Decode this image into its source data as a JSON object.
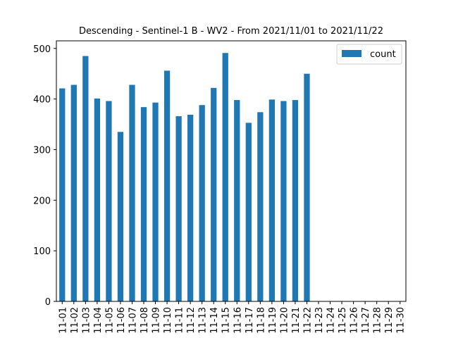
{
  "chart_data": {
    "type": "bar",
    "title": "Descending - Sentinel-1 B - WV2 - From 2021/11/01 to 2021/11/22",
    "xlabel": "",
    "ylabel": "",
    "categories": [
      "11-01",
      "11-02",
      "11-03",
      "11-04",
      "11-05",
      "11-06",
      "11-07",
      "11-08",
      "11-09",
      "11-10",
      "11-11",
      "11-12",
      "11-13",
      "11-14",
      "11-15",
      "11-16",
      "11-17",
      "11-18",
      "11-19",
      "11-20",
      "11-21",
      "11-22",
      "11-23",
      "11-24",
      "11-25",
      "11-26",
      "11-27",
      "11-28",
      "11-29",
      "11-30"
    ],
    "series": [
      {
        "name": "count",
        "color": "#1f77b4",
        "values": [
          421,
          428,
          485,
          401,
          396,
          335,
          428,
          384,
          393,
          456,
          366,
          369,
          388,
          422,
          491,
          398,
          353,
          374,
          399,
          396,
          398,
          450,
          0,
          0,
          0,
          0,
          0,
          0,
          0,
          0
        ]
      }
    ],
    "ylim": [
      0,
      515
    ],
    "yticks": [
      0,
      100,
      200,
      300,
      400,
      500
    ],
    "grid": false,
    "legend_position": "top-right"
  }
}
